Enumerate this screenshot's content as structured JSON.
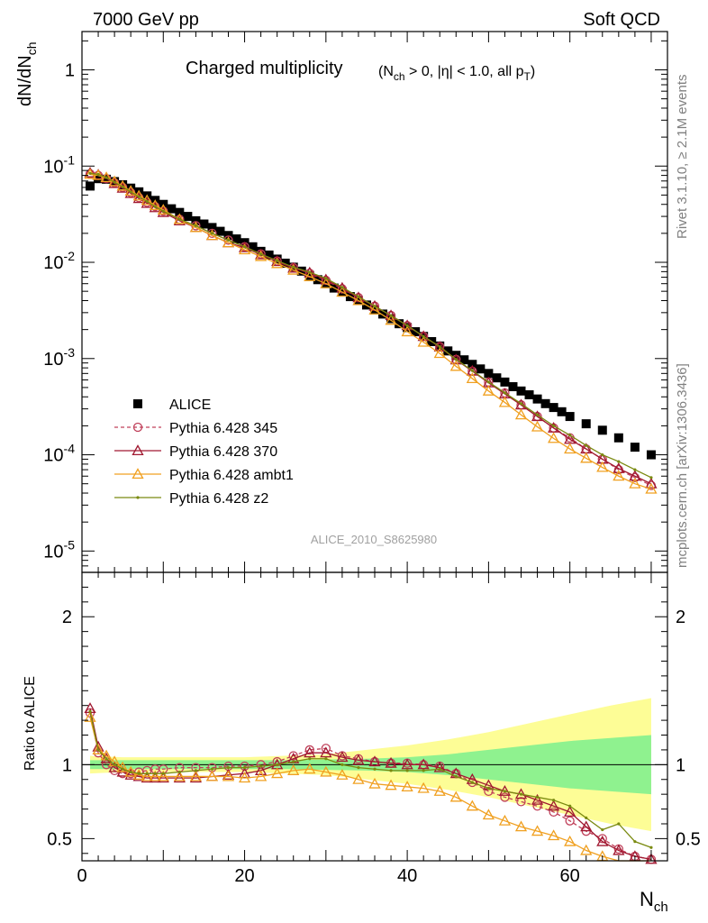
{
  "header": {
    "left": "7000 GeV pp",
    "right": "Soft QCD"
  },
  "side_labels": {
    "rivet": "Rivet 3.1.10, ≥ 2.1M events",
    "mcplots": "mcplots.cern.ch [arXiv:1306.3436]"
  },
  "watermark": "ALICE_2010_S8625980",
  "chart_data": [
    {
      "type": "scatter",
      "panel": "main",
      "title": "Charged multiplicity",
      "title_cuts": "(N_ch > 0, |η| < 1.0, all p_T)",
      "ylabel": "dN/dN_ch",
      "xlabel": "N_ch",
      "xlim": [
        0,
        72
      ],
      "ylim": [
        6e-06,
        2.5
      ],
      "yscale": "log",
      "y_ticks": [
        "1",
        "10^-1",
        "10^-2",
        "10^-3",
        "10^-4",
        "10^-5"
      ],
      "legend_position": "middle-left",
      "series": [
        {
          "name": "ALICE",
          "color": "#000000",
          "style": "filled-square",
          "x": [
            1,
            2,
            3,
            4,
            5,
            6,
            7,
            8,
            9,
            10,
            11,
            12,
            13,
            14,
            15,
            16,
            17,
            18,
            19,
            20,
            21,
            22,
            23,
            24,
            25,
            26,
            27,
            28,
            29,
            30,
            31,
            32,
            33,
            34,
            35,
            36,
            37,
            38,
            39,
            40,
            41,
            42,
            43,
            44,
            45,
            46,
            47,
            48,
            49,
            50,
            51,
            52,
            53,
            54,
            55,
            56,
            57,
            58,
            59,
            60,
            62,
            64,
            66,
            68,
            70
          ],
          "y": [
            0.062,
            0.074,
            0.073,
            0.069,
            0.064,
            0.059,
            0.054,
            0.049,
            0.044,
            0.04,
            0.036,
            0.033,
            0.03,
            0.027,
            0.025,
            0.023,
            0.021,
            0.019,
            0.0175,
            0.016,
            0.0145,
            0.013,
            0.0119,
            0.0108,
            0.0098,
            0.0089,
            0.0081,
            0.0073,
            0.0066,
            0.006,
            0.0054,
            0.0049,
            0.0044,
            0.004,
            0.0036,
            0.0032,
            0.0029,
            0.0026,
            0.0023,
            0.0021,
            0.0019,
            0.0017,
            0.0015,
            0.00135,
            0.0012,
            0.00108,
            0.00097,
            0.00087,
            0.00078,
            0.0007,
            0.00063,
            0.00057,
            0.00051,
            0.00046,
            0.00042,
            0.00038,
            0.00034,
            0.00031,
            0.00028,
            0.00025,
            0.00021,
            0.00018,
            0.00015,
            0.00012,
            0.0001
          ]
        },
        {
          "name": "Pythia 6.428 345",
          "color": "#c0405a",
          "style": "open-circle-dashed",
          "x": [
            1,
            2,
            3,
            4,
            5,
            6,
            7,
            8,
            9,
            10,
            12,
            14,
            16,
            18,
            20,
            22,
            24,
            26,
            28,
            30,
            32,
            34,
            36,
            38,
            40,
            42,
            44,
            46,
            48,
            50,
            52,
            54,
            56,
            58,
            60,
            62,
            64,
            66,
            68,
            70
          ],
          "y": [
            0.083,
            0.08,
            0.074,
            0.067,
            0.06,
            0.053,
            0.047,
            0.042,
            0.038,
            0.034,
            0.028,
            0.024,
            0.02,
            0.017,
            0.0145,
            0.0122,
            0.0103,
            0.0088,
            0.0077,
            0.0065,
            0.0053,
            0.0043,
            0.0035,
            0.0028,
            0.0022,
            0.0017,
            0.00133,
            0.00098,
            0.00074,
            0.00057,
            0.00044,
            0.00033,
            0.00025,
            0.00019,
            0.00015,
            0.000115,
            9e-05,
            7e-05,
            5.8e-05,
            4.8e-05
          ]
        },
        {
          "name": "Pythia 6.428 370",
          "color": "#a01830",
          "style": "open-triangle-solid",
          "x": [
            1,
            2,
            3,
            4,
            5,
            6,
            7,
            8,
            9,
            10,
            12,
            14,
            16,
            18,
            20,
            22,
            24,
            26,
            28,
            30,
            32,
            34,
            36,
            38,
            40,
            42,
            44,
            46,
            48,
            50,
            52,
            54,
            56,
            58,
            60,
            62,
            64,
            66,
            68,
            70
          ],
          "y": [
            0.085,
            0.081,
            0.075,
            0.066,
            0.059,
            0.052,
            0.046,
            0.041,
            0.037,
            0.033,
            0.027,
            0.023,
            0.019,
            0.016,
            0.0142,
            0.012,
            0.0102,
            0.0087,
            0.0078,
            0.0066,
            0.0054,
            0.0043,
            0.0035,
            0.0028,
            0.0022,
            0.0017,
            0.00132,
            0.00097,
            0.00074,
            0.00056,
            0.00043,
            0.00033,
            0.00025,
            0.00019,
            0.000145,
            0.000115,
            9e-05,
            7.2e-05,
            6e-05,
            5e-05
          ]
        },
        {
          "name": "Pythia 6.428 ambt1",
          "color": "#f0a020",
          "style": "open-triangle-solid",
          "x": [
            1,
            2,
            3,
            4,
            5,
            6,
            7,
            8,
            9,
            10,
            12,
            14,
            16,
            18,
            20,
            22,
            24,
            26,
            28,
            30,
            32,
            34,
            36,
            38,
            40,
            42,
            44,
            46,
            48,
            50,
            52,
            54,
            56,
            58,
            60,
            62,
            64,
            66,
            68,
            70
          ],
          "y": [
            0.082,
            0.08,
            0.076,
            0.069,
            0.062,
            0.055,
            0.049,
            0.044,
            0.039,
            0.035,
            0.028,
            0.023,
            0.019,
            0.016,
            0.0135,
            0.0115,
            0.0097,
            0.0083,
            0.0071,
            0.006,
            0.0049,
            0.004,
            0.0032,
            0.0025,
            0.0019,
            0.00148,
            0.00113,
            0.00083,
            0.00062,
            0.00046,
            0.00035,
            0.00026,
            0.000195,
            0.000148,
            0.000115,
            9.2e-05,
            7.4e-05,
            6e-05,
            5e-05,
            4.4e-05
          ]
        },
        {
          "name": "Pythia 6.428 z2",
          "color": "#7a8a10",
          "style": "dot-solid",
          "x": [
            1,
            2,
            3,
            4,
            5,
            6,
            7,
            8,
            9,
            10,
            12,
            14,
            16,
            18,
            20,
            22,
            24,
            26,
            28,
            30,
            32,
            34,
            36,
            38,
            40,
            42,
            44,
            46,
            48,
            50,
            52,
            54,
            56,
            58,
            60,
            62,
            64,
            66,
            68,
            70
          ],
          "y": [
            0.084,
            0.082,
            0.076,
            0.068,
            0.061,
            0.054,
            0.048,
            0.043,
            0.038,
            0.034,
            0.028,
            0.024,
            0.02,
            0.017,
            0.0145,
            0.0122,
            0.0104,
            0.0089,
            0.0079,
            0.0068,
            0.0055,
            0.0044,
            0.0035,
            0.0028,
            0.0022,
            0.0017,
            0.00133,
            0.00098,
            0.00075,
            0.00057,
            0.00044,
            0.00034,
            0.00026,
            0.0002,
            0.00016,
            0.000125,
            0.0001,
            8.5e-05,
            7e-05,
            5.8e-05
          ]
        }
      ]
    },
    {
      "type": "line",
      "panel": "ratio",
      "ylabel": "Ratio to ALICE",
      "xlabel": "N_ch",
      "xlim": [
        0,
        72
      ],
      "ylim": [
        0.35,
        2.3
      ],
      "x_ticks": [
        "0",
        "20",
        "40",
        "60"
      ],
      "y_ticks": [
        "0.5",
        "1",
        "2"
      ],
      "reference_line": 1,
      "bands": {
        "x": [
          1,
          5,
          10,
          15,
          20,
          25,
          30,
          35,
          40,
          45,
          50,
          55,
          60,
          65,
          70
        ],
        "inner_half_width": [
          0.03,
          0.03,
          0.03,
          0.03,
          0.03,
          0.03,
          0.035,
          0.04,
          0.05,
          0.07,
          0.1,
          0.13,
          0.16,
          0.18,
          0.2
        ],
        "outer_half_width": [
          0.06,
          0.05,
          0.05,
          0.05,
          0.05,
          0.06,
          0.07,
          0.1,
          0.13,
          0.17,
          0.22,
          0.28,
          0.34,
          0.4,
          0.45
        ],
        "inner_color": "#8ff28f",
        "outer_color": "#fdfd96"
      },
      "series": [
        {
          "name": "Pythia 6.428 345",
          "color": "#c0405a",
          "x": [
            1,
            2,
            3,
            4,
            5,
            6,
            7,
            8,
            9,
            10,
            12,
            14,
            16,
            18,
            20,
            22,
            24,
            26,
            28,
            30,
            32,
            34,
            36,
            38,
            40,
            42,
            44,
            46,
            48,
            50,
            52,
            54,
            56,
            58,
            60,
            62,
            64,
            66,
            68,
            70
          ],
          "y": [
            1.35,
            1.08,
            1.0,
            0.96,
            0.94,
            0.94,
            0.95,
            0.96,
            0.97,
            0.97,
            0.98,
            0.98,
            0.98,
            0.99,
            0.99,
            1.0,
            1.02,
            1.06,
            1.1,
            1.11,
            1.06,
            1.04,
            1.02,
            1.01,
            1.01,
            1.0,
            0.99,
            0.94,
            0.88,
            0.82,
            0.78,
            0.75,
            0.72,
            0.68,
            0.62,
            0.55,
            0.5,
            0.43,
            0.38,
            0.36
          ]
        },
        {
          "name": "Pythia 6.428 370",
          "color": "#a01830",
          "x": [
            1,
            2,
            3,
            4,
            5,
            6,
            7,
            8,
            9,
            10,
            12,
            14,
            16,
            18,
            20,
            22,
            24,
            26,
            28,
            30,
            32,
            34,
            36,
            38,
            40,
            42,
            44,
            46,
            48,
            50,
            52,
            54,
            56,
            58,
            60,
            62,
            64,
            66,
            68,
            70
          ],
          "y": [
            1.38,
            1.12,
            1.04,
            0.98,
            0.95,
            0.93,
            0.92,
            0.91,
            0.91,
            0.91,
            0.91,
            0.91,
            0.92,
            0.93,
            0.94,
            0.96,
            1.0,
            1.04,
            1.08,
            1.08,
            1.05,
            1.03,
            1.02,
            1.01,
            1.0,
            1.0,
            0.98,
            0.94,
            0.9,
            0.86,
            0.82,
            0.8,
            0.76,
            0.72,
            0.68,
            0.58,
            0.48,
            0.42,
            0.38,
            0.36
          ]
        },
        {
          "name": "Pythia 6.428 ambt1",
          "color": "#f0a020",
          "x": [
            1,
            2,
            3,
            4,
            5,
            6,
            7,
            8,
            9,
            10,
            12,
            14,
            16,
            18,
            20,
            22,
            24,
            26,
            28,
            30,
            32,
            34,
            36,
            38,
            40,
            42,
            44,
            46,
            48,
            50,
            52,
            54,
            56,
            58,
            60,
            62,
            64,
            66,
            68,
            70
          ],
          "y": [
            1.32,
            1.1,
            1.06,
            1.02,
            0.98,
            0.95,
            0.93,
            0.92,
            0.92,
            0.92,
            0.92,
            0.92,
            0.92,
            0.92,
            0.91,
            0.92,
            0.94,
            0.96,
            0.97,
            0.95,
            0.93,
            0.9,
            0.87,
            0.86,
            0.85,
            0.84,
            0.82,
            0.78,
            0.72,
            0.66,
            0.62,
            0.58,
            0.55,
            0.52,
            0.48,
            0.42,
            0.38,
            0.34,
            0.33,
            0.33
          ]
        },
        {
          "name": "Pythia 6.428 z2",
          "color": "#7a8a10",
          "x": [
            1,
            2,
            3,
            4,
            5,
            6,
            7,
            8,
            9,
            10,
            12,
            14,
            16,
            18,
            20,
            22,
            24,
            26,
            28,
            30,
            32,
            34,
            36,
            38,
            40,
            42,
            44,
            46,
            48,
            50,
            52,
            54,
            56,
            58,
            60,
            62,
            64,
            66,
            68,
            70
          ],
          "y": [
            1.36,
            1.1,
            1.04,
            1.0,
            0.97,
            0.95,
            0.94,
            0.94,
            0.94,
            0.94,
            0.95,
            0.96,
            0.97,
            0.98,
            0.98,
            0.99,
            1.0,
            1.02,
            1.04,
            1.04,
            1.0,
            0.98,
            0.97,
            0.96,
            0.96,
            0.96,
            0.97,
            0.92,
            0.88,
            0.84,
            0.82,
            0.8,
            0.78,
            0.76,
            0.72,
            0.64,
            0.56,
            0.6,
            0.48,
            0.44
          ]
        }
      ]
    }
  ]
}
